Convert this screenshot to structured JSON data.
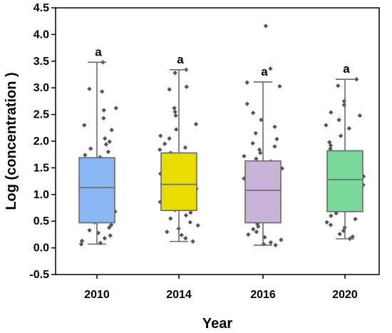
{
  "chart_data": {
    "type": "box",
    "xlabel": "Year",
    "ylabel": "Log (concentration )",
    "ylim": [
      -0.5,
      4.5
    ],
    "yticks": [
      -0.5,
      0.0,
      0.5,
      1.0,
      1.5,
      2.0,
      2.5,
      3.0,
      3.5,
      4.0,
      4.5
    ],
    "ytick_labels": [
      "-0.5",
      "0.0",
      "0.5",
      "1.0",
      "1.5",
      "2.0",
      "2.5",
      "3.0",
      "3.5",
      "4.0",
      "4.5"
    ],
    "grid": false,
    "categories": [
      "2010",
      "2014",
      "2016",
      "2020"
    ],
    "boxes": [
      {
        "category": "2010",
        "whisker_low": 0.07,
        "q1": 0.47,
        "median": 1.13,
        "q3": 1.69,
        "whisker_high": 3.48,
        "letter": "a",
        "color": "#8ab6f2"
      },
      {
        "category": "2014",
        "whisker_low": 0.12,
        "q1": 0.7,
        "median": 1.19,
        "q3": 1.78,
        "whisker_high": 3.34,
        "letter": "a",
        "color": "#e8dc00"
      },
      {
        "category": "2016",
        "whisker_low": 0.05,
        "q1": 0.47,
        "median": 1.08,
        "q3": 1.63,
        "whisker_high": 3.11,
        "letter": "a",
        "color": "#c9b3d9"
      },
      {
        "category": "2020",
        "whisker_low": 0.17,
        "q1": 0.68,
        "median": 1.28,
        "q3": 1.82,
        "whisker_high": 3.16,
        "letter": "a",
        "color": "#7ad89a"
      }
    ],
    "points": [
      [
        3.48,
        2.98,
        2.93,
        2.62,
        2.58,
        2.43,
        2.3,
        2.21,
        2.05,
        1.99,
        1.94,
        1.86,
        1.8,
        1.74,
        1.7,
        1.66,
        1.62,
        1.58,
        1.54,
        1.49,
        1.44,
        1.4,
        1.35,
        1.3,
        1.26,
        1.22,
        1.17,
        1.13,
        1.08,
        1.03,
        0.98,
        0.93,
        0.88,
        0.83,
        0.78,
        0.73,
        0.68,
        0.63,
        0.58,
        0.53,
        0.48,
        0.43,
        0.38,
        0.33,
        0.28,
        0.23,
        0.18,
        0.13,
        0.09,
        0.07
      ],
      [
        3.34,
        3.28,
        3.02,
        2.97,
        2.62,
        2.55,
        2.48,
        2.32,
        2.22,
        2.1,
        2.05,
        1.95,
        1.88,
        1.84,
        1.78,
        1.74,
        1.7,
        1.66,
        1.62,
        1.58,
        1.55,
        1.51,
        1.47,
        1.43,
        1.39,
        1.35,
        1.31,
        1.27,
        1.23,
        1.19,
        1.15,
        1.11,
        1.06,
        1.01,
        0.96,
        0.91,
        0.86,
        0.81,
        0.76,
        0.71,
        0.66,
        0.61,
        0.55,
        0.48,
        0.42,
        0.36,
        0.3,
        0.24,
        0.18,
        0.12
      ],
      [
        4.16,
        3.36,
        3.1,
        3.03,
        2.7,
        2.53,
        2.4,
        2.27,
        2.15,
        2.04,
        1.96,
        1.9,
        1.84,
        1.78,
        1.72,
        1.67,
        1.62,
        1.58,
        1.53,
        1.49,
        1.45,
        1.4,
        1.35,
        1.3,
        1.25,
        1.2,
        1.15,
        1.1,
        1.05,
        1.0,
        0.95,
        0.9,
        0.85,
        0.8,
        0.75,
        0.7,
        0.65,
        0.6,
        0.55,
        0.5,
        0.45,
        0.4,
        0.35,
        0.3,
        0.25,
        0.2,
        0.15,
        0.1,
        0.07,
        0.05
      ],
      [
        3.16,
        3.04,
        2.75,
        2.68,
        2.54,
        2.48,
        2.4,
        2.3,
        2.24,
        2.1,
        1.98,
        1.92,
        1.86,
        1.82,
        1.78,
        1.74,
        1.7,
        1.66,
        1.62,
        1.58,
        1.54,
        1.5,
        1.46,
        1.42,
        1.38,
        1.34,
        1.3,
        1.26,
        1.22,
        1.18,
        1.14,
        1.1,
        1.05,
        1.0,
        0.95,
        0.9,
        0.85,
        0.8,
        0.75,
        0.7,
        0.65,
        0.6,
        0.54,
        0.48,
        0.43,
        0.38,
        0.32,
        0.26,
        0.21,
        0.17
      ]
    ]
  }
}
